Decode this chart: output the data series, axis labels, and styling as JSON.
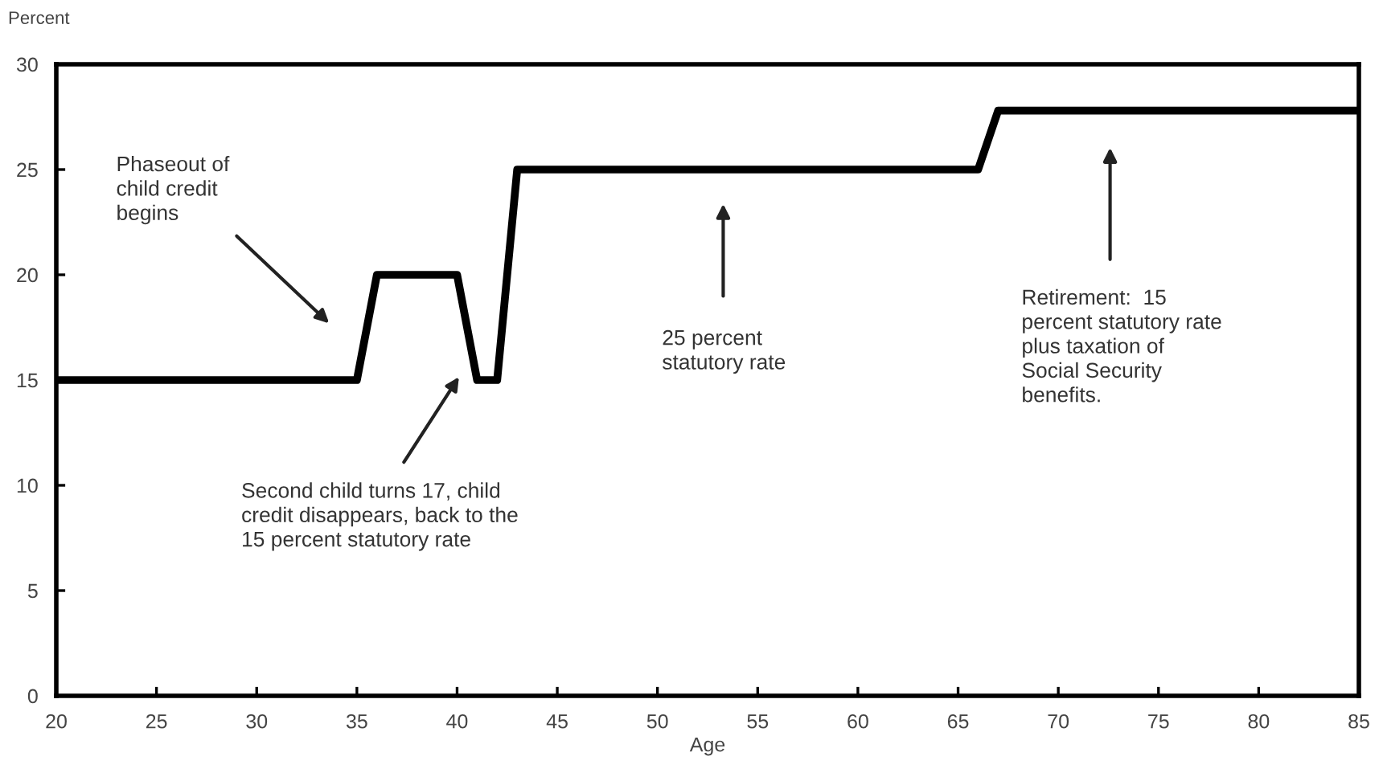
{
  "chart_data": {
    "type": "line",
    "xlabel": "Age",
    "ylabel": "Percent",
    "x": [
      20,
      35,
      36,
      40,
      41,
      42,
      43,
      66,
      67,
      85
    ],
    "series": [
      {
        "color": "#000000",
        "values": [
          15,
          15,
          20,
          20,
          15,
          15,
          25,
          25,
          27.8,
          27.8
        ]
      }
    ],
    "xlim": [
      20,
      85
    ],
    "xticks": [
      20,
      25,
      30,
      35,
      40,
      45,
      50,
      55,
      60,
      65,
      70,
      75,
      80,
      85
    ],
    "ylim": [
      0,
      30
    ],
    "yticks": [
      0,
      5,
      10,
      15,
      20,
      25,
      30
    ],
    "grid": false,
    "marker": "none",
    "line_style": "solid",
    "annotations": [
      "Phaseout of\nchild credit\nbegins",
      "Second child turns 17, child\ncredit disappears, back to the\n15 percent statutory rate",
      "25 percent\nstatutory rate",
      "Retirement:  15\npercent statutory rate\nplus taxation of\nSocial Security\nbenefits."
    ]
  }
}
